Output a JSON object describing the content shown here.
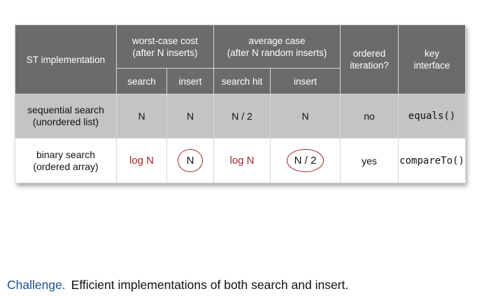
{
  "header": {
    "st_impl": "ST implementation",
    "worst_case_line1": "worst-case cost",
    "worst_case_line2": "(after N inserts)",
    "average_line1": "average case",
    "average_line2": "(after N random inserts)",
    "ordered_line1": "ordered",
    "ordered_line2": "iteration?",
    "key_line1": "key",
    "key_line2": "interface",
    "search": "search",
    "insert": "insert",
    "search_hit": "search hit",
    "insert2": "insert"
  },
  "rows": [
    {
      "label_line1": "sequential search",
      "label_line2": "(unordered list)",
      "worst_search": "N",
      "worst_insert": "N",
      "avg_search_hit": "N / 2",
      "avg_insert": "N",
      "ordered": "no",
      "key": "equals()"
    },
    {
      "label_line1": "binary search",
      "label_line2": "(ordered array)",
      "worst_search": "log N",
      "worst_insert": "N",
      "avg_search_hit": "log N",
      "avg_insert": "N / 2",
      "ordered": "yes",
      "key": "compareTo()"
    }
  ],
  "challenge": {
    "keyword": "Challenge.",
    "text": "Efficient implementations of both search and insert."
  },
  "colors": {
    "header_bg": "#6b6b6b",
    "row1_bg": "#c4c4c4",
    "highlight_red": "#a6262e",
    "challenge_blue": "#1f4f8f"
  }
}
